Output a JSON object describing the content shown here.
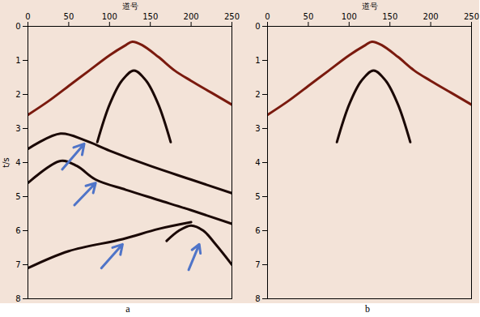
{
  "chart_data": [
    {
      "type": "line",
      "caption": "a",
      "x_label": "道号",
      "y_label": "t/s",
      "xlim": [
        0,
        250
      ],
      "xticks": [
        0,
        50,
        100,
        150,
        200,
        250
      ],
      "ylim": [
        0,
        8
      ],
      "yticks": [
        0,
        1,
        2,
        3,
        4,
        5,
        6,
        7,
        8
      ],
      "series": [
        {
          "type": "line",
          "color": "#7a1a0e",
          "x": [
            0,
            25,
            50,
            75,
            100,
            120,
            128,
            140,
            160,
            180,
            200,
            225,
            250
          ],
          "values": [
            2.6,
            2.2,
            1.75,
            1.3,
            0.85,
            0.55,
            0.45,
            0.55,
            0.9,
            1.3,
            1.6,
            1.95,
            2.3
          ]
        },
        {
          "type": "line",
          "color": "#1a0805",
          "x": [
            85,
            100,
            115,
            130,
            145,
            160,
            175
          ],
          "values": [
            3.4,
            2.3,
            1.6,
            1.3,
            1.6,
            2.3,
            3.4
          ]
        },
        {
          "type": "line",
          "color": "#1a0805",
          "x": [
            0,
            40,
            70,
            100,
            150,
            200,
            250
          ],
          "values": [
            3.6,
            3.15,
            3.35,
            3.65,
            4.1,
            4.5,
            4.9
          ]
        },
        {
          "type": "line",
          "color": "#1a0805",
          "x": [
            0,
            40,
            60,
            83,
            120,
            160,
            200,
            250
          ],
          "values": [
            4.6,
            3.95,
            4.1,
            4.5,
            4.8,
            5.1,
            5.4,
            5.8
          ]
        },
        {
          "type": "line",
          "color": "#1a0805",
          "x": [
            0,
            50,
            116,
            160,
            200
          ],
          "values": [
            7.1,
            6.6,
            6.25,
            5.95,
            5.75
          ]
        },
        {
          "type": "line",
          "color": "#1a0805",
          "x": [
            170,
            185,
            200,
            215,
            230,
            250
          ],
          "values": [
            6.3,
            6.0,
            5.85,
            6.0,
            6.4,
            7.0
          ]
        },
        {
          "type": "arrow",
          "color": "#4f74c8",
          "x1": [
            42,
            57,
            90,
            197
          ],
          "y1": [
            4.2,
            5.25,
            7.1,
            7.15
          ],
          "x2": [
            69,
            83,
            116,
            210
          ],
          "y2": [
            3.45,
            4.6,
            6.4,
            6.4
          ]
        }
      ]
    },
    {
      "type": "line",
      "caption": "b",
      "x_label": "道号",
      "xlim": [
        0,
        250
      ],
      "xticks": [
        0,
        50,
        100,
        150,
        200,
        250
      ],
      "ylim": [
        0,
        8
      ],
      "yticks": [
        0,
        1,
        2,
        3,
        4,
        5,
        6,
        7,
        8
      ],
      "series": [
        {
          "type": "line",
          "color": "#7a1a0e",
          "x": [
            0,
            25,
            50,
            75,
            100,
            120,
            128,
            140,
            160,
            180,
            200,
            225,
            250
          ],
          "values": [
            2.6,
            2.2,
            1.75,
            1.3,
            0.85,
            0.55,
            0.45,
            0.55,
            0.9,
            1.3,
            1.6,
            1.95,
            2.3
          ]
        },
        {
          "type": "line",
          "color": "#1a0805",
          "x": [
            85,
            100,
            115,
            130,
            145,
            160,
            175
          ],
          "values": [
            3.4,
            2.3,
            1.6,
            1.3,
            1.6,
            2.3,
            3.4
          ]
        }
      ]
    }
  ]
}
